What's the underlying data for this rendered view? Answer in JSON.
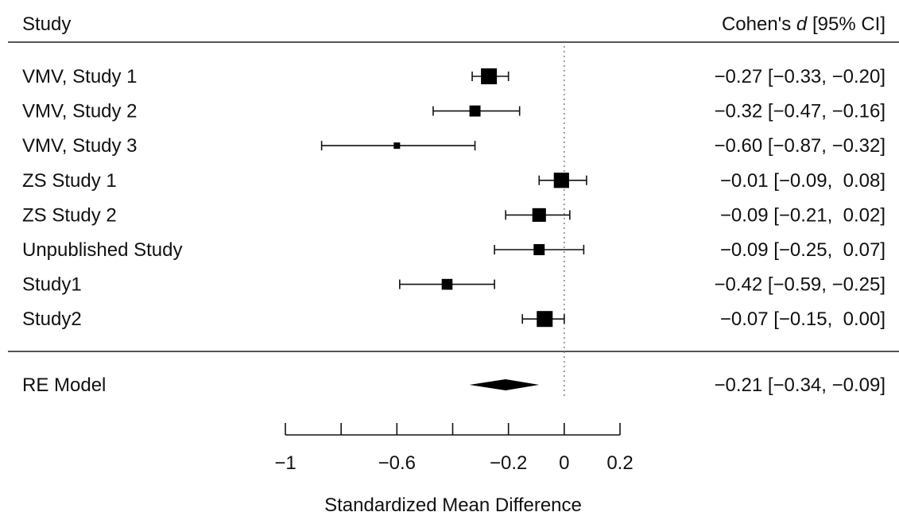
{
  "chart_data": {
    "type": "forest",
    "header_left": "Study",
    "header_right_prefix": "Cohen's ",
    "header_right_italic": "d",
    "header_right_suffix": " [95% CI]",
    "xlabel": "Standardized Mean Difference",
    "xlim": [
      -1,
      0.2
    ],
    "xticks": [
      -1,
      -0.8,
      -0.6,
      -0.4,
      -0.2,
      0,
      0.2
    ],
    "xtick_labels": [
      "−1",
      "",
      "−0.6",
      "",
      "−0.2",
      "0",
      "0.2"
    ],
    "reference_line": 0,
    "studies": [
      {
        "label": "VMV, Study 1",
        "estimate": -0.27,
        "lower": -0.33,
        "upper": -0.2,
        "weight": 1.0,
        "text": "−0.27 [−0.33, −0.20]"
      },
      {
        "label": "VMV, Study 2",
        "estimate": -0.32,
        "lower": -0.47,
        "upper": -0.16,
        "weight": 0.62,
        "text": "−0.32 [−0.47, −0.16]"
      },
      {
        "label": "VMV, Study 3",
        "estimate": -0.6,
        "lower": -0.87,
        "upper": -0.32,
        "weight": 0.25,
        "text": "−0.60 [−0.87, −0.32]"
      },
      {
        "label": "ZS Study 1",
        "estimate": -0.01,
        "lower": -0.09,
        "upper": 0.08,
        "weight": 0.95,
        "text": "−0.01 [−0.09,  0.08]"
      },
      {
        "label": "ZS Study 2",
        "estimate": -0.09,
        "lower": -0.21,
        "upper": 0.02,
        "weight": 0.82,
        "text": "−0.09 [−0.21,  0.02]"
      },
      {
        "label": "Unpublished Study",
        "estimate": -0.09,
        "lower": -0.25,
        "upper": 0.07,
        "weight": 0.62,
        "text": "−0.09 [−0.25,  0.07]"
      },
      {
        "label": "Study1",
        "estimate": -0.42,
        "lower": -0.59,
        "upper": -0.25,
        "weight": 0.6,
        "text": "−0.42 [−0.59, −0.25]"
      },
      {
        "label": "Study2",
        "estimate": -0.07,
        "lower": -0.15,
        "upper": 0.0,
        "weight": 1.0,
        "text": "−0.07 [−0.15,  0.00]"
      }
    ],
    "summary": {
      "label": "RE Model",
      "estimate": -0.21,
      "lower": -0.34,
      "upper": -0.09,
      "text": "−0.21 [−0.34, −0.09]"
    }
  }
}
